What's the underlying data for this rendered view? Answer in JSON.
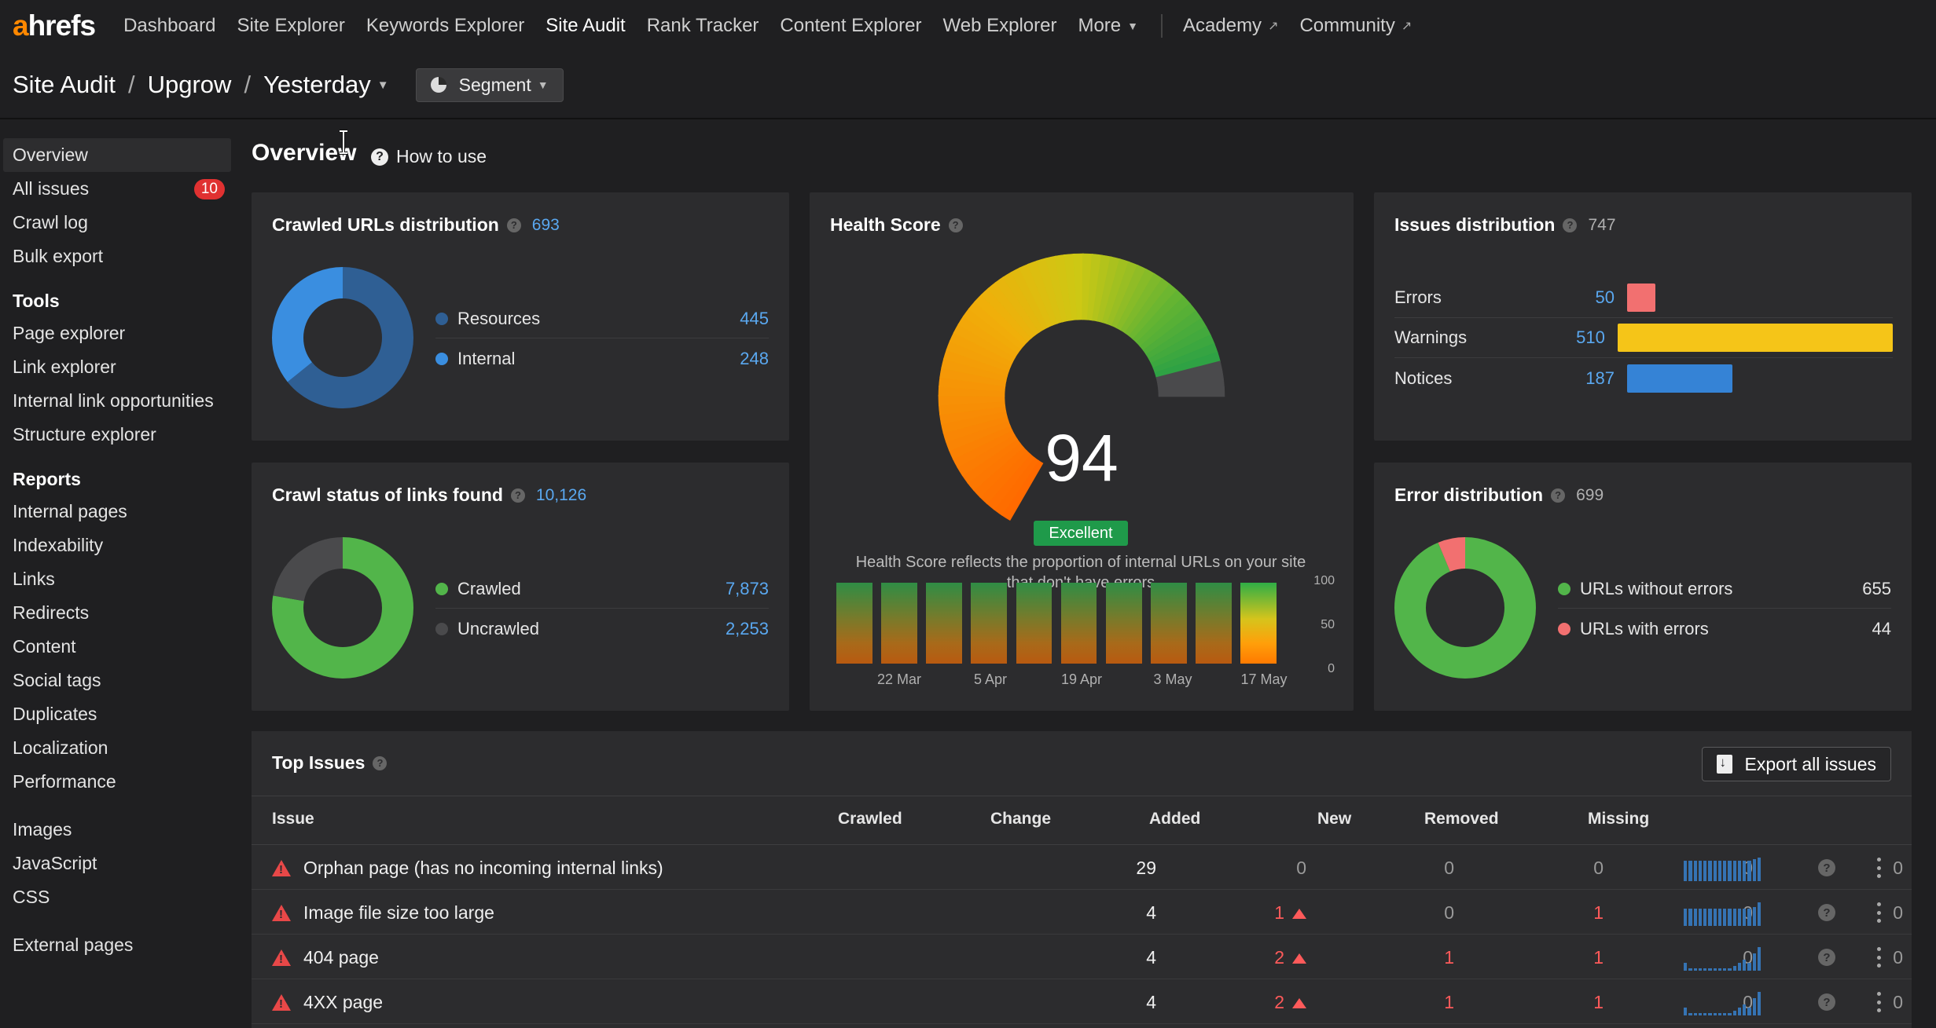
{
  "topnav": {
    "logo_a": "a",
    "logo_rest": "hrefs",
    "items": [
      {
        "label": "Dashboard"
      },
      {
        "label": "Site Explorer"
      },
      {
        "label": "Keywords Explorer"
      },
      {
        "label": "Site Audit",
        "active": true
      },
      {
        "label": "Rank Tracker"
      },
      {
        "label": "Content Explorer"
      },
      {
        "label": "Web Explorer"
      },
      {
        "label": "More"
      }
    ],
    "external": [
      {
        "label": "Academy"
      },
      {
        "label": "Community"
      }
    ]
  },
  "breadcrumb": {
    "root": "Site Audit",
    "project": "Upgrow",
    "date": "Yesterday",
    "sep": "/",
    "segment_label": "Segment"
  },
  "sidebar": {
    "main": [
      {
        "label": "Overview",
        "active": true
      },
      {
        "label": "All issues",
        "badge": "10"
      },
      {
        "label": "Crawl log"
      },
      {
        "label": "Bulk export"
      }
    ],
    "tools_heading": "Tools",
    "tools": [
      {
        "label": "Page explorer"
      },
      {
        "label": "Link explorer"
      },
      {
        "label": "Internal link opportunities"
      },
      {
        "label": "Structure explorer"
      }
    ],
    "reports_heading": "Reports",
    "reports": [
      {
        "label": "Internal pages"
      },
      {
        "label": "Indexability"
      },
      {
        "label": "Links"
      },
      {
        "label": "Redirects"
      },
      {
        "label": "Content"
      },
      {
        "label": "Social tags"
      },
      {
        "label": "Duplicates"
      },
      {
        "label": "Localization"
      },
      {
        "label": "Performance"
      }
    ],
    "resources": [
      {
        "label": "Images"
      },
      {
        "label": "JavaScript"
      },
      {
        "label": "CSS"
      }
    ],
    "external": [
      {
        "label": "External pages"
      }
    ]
  },
  "overview": {
    "title": "Overview",
    "how_to_use": "How to use"
  },
  "crawled_urls": {
    "title": "Crawled URLs distribution",
    "total": "693",
    "rows": [
      {
        "label": "Resources",
        "value": "445",
        "color": "#2f5f94",
        "n": 445
      },
      {
        "label": "Internal",
        "value": "248",
        "color": "#3a8ee0",
        "n": 248
      }
    ]
  },
  "crawl_status": {
    "title": "Crawl status of links found",
    "total": "10,126",
    "rows": [
      {
        "label": "Crawled",
        "value": "7,873",
        "color": "#52b54a",
        "n": 7873
      },
      {
        "label": "Uncrawled",
        "value": "2,253",
        "color": "#4a4a4c",
        "n": 2253
      }
    ]
  },
  "health": {
    "title": "Health Score",
    "score": "94",
    "score_value": 94,
    "rating": "Excellent",
    "description": "Health Score reflects the proportion of internal URLs on your site that don't have errors",
    "chart_data": {
      "type": "bar",
      "values": [
        94,
        94,
        94,
        94,
        94,
        94,
        94,
        94,
        94,
        94
      ],
      "x_ticks": [
        "22 Mar",
        "5 Apr",
        "19 Apr",
        "3 May",
        "17 May"
      ],
      "y_ticks": [
        "100",
        "50",
        "0"
      ],
      "ylim": [
        0,
        100
      ]
    }
  },
  "issues_distribution": {
    "title": "Issues distribution",
    "total": "747",
    "rows": [
      {
        "label": "Errors",
        "value": "50",
        "n": 50,
        "color": "#f27070"
      },
      {
        "label": "Warnings",
        "value": "510",
        "n": 510,
        "color": "#f5c518"
      },
      {
        "label": "Notices",
        "value": "187",
        "n": 187,
        "color": "#3583d6"
      }
    ]
  },
  "error_distribution": {
    "title": "Error distribution",
    "total": "699",
    "rows": [
      {
        "label": "URLs without errors",
        "value": "655",
        "color": "#52b54a",
        "n": 655
      },
      {
        "label": "URLs with errors",
        "value": "44",
        "color": "#f27070",
        "n": 44
      }
    ]
  },
  "top_issues": {
    "title": "Top Issues",
    "export_label": "Export all issues",
    "columns": [
      "Issue",
      "Crawled",
      "Change",
      "Added",
      "New",
      "Removed",
      "Missing"
    ],
    "rows": [
      {
        "issue": "Orphan page (has no incoming internal links)",
        "crawled": "29",
        "change": "0",
        "change_up": false,
        "added": "0",
        "new": "0",
        "removed": "0",
        "missing": "0",
        "spark": [
          26,
          26,
          26,
          26,
          26,
          26,
          26,
          26,
          26,
          26,
          26,
          26,
          26,
          26,
          28,
          30
        ]
      },
      {
        "issue": "Image file size too large",
        "crawled": "4",
        "change": "1",
        "change_up": true,
        "added": "0",
        "new": "1",
        "removed": "0",
        "missing": "0",
        "spark": [
          22,
          22,
          22,
          22,
          22,
          22,
          22,
          22,
          22,
          22,
          22,
          22,
          22,
          22,
          24,
          30
        ]
      },
      {
        "issue": "404 page",
        "crawled": "4",
        "change": "2",
        "change_up": true,
        "added": "1",
        "new": "1",
        "removed": "0",
        "missing": "0",
        "spark": [
          10,
          3,
          3,
          3,
          3,
          3,
          3,
          3,
          3,
          3,
          6,
          10,
          14,
          10,
          22,
          30
        ]
      },
      {
        "issue": "4XX page",
        "crawled": "4",
        "change": "2",
        "change_up": true,
        "added": "1",
        "new": "1",
        "removed": "0",
        "missing": "0",
        "spark": [
          10,
          3,
          3,
          3,
          3,
          3,
          3,
          3,
          3,
          3,
          6,
          10,
          14,
          10,
          22,
          30
        ]
      }
    ]
  }
}
